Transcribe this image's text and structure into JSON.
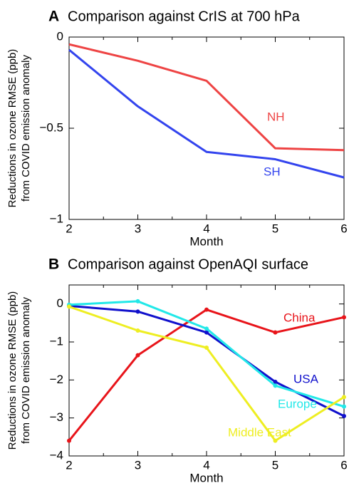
{
  "chart_data": [
    {
      "type": "line",
      "label": "A",
      "title": "Comparison against CrIS at 700 hPa",
      "xlabel": "Month",
      "ylabel": [
        "Reductions in ozone RMSE (ppb)",
        "from COVID emission anomaly"
      ],
      "x": [
        2,
        3,
        4,
        5,
        6
      ],
      "xlim": [
        2,
        6
      ],
      "xticks": [
        2,
        3,
        4,
        5,
        6
      ],
      "ylim": [
        -1,
        0
      ],
      "yticks": [
        {
          "value": -1,
          "label": "−1"
        },
        {
          "value": -0.5,
          "label": "−0.5"
        },
        0
      ],
      "markers": false,
      "series": [
        {
          "name": "NH",
          "color": "#ee4444",
          "values": [
            -0.04,
            -0.13,
            -0.24,
            -0.61,
            -0.62
          ]
        },
        {
          "name": "SH",
          "color": "#3344ee",
          "values": [
            -0.07,
            -0.38,
            -0.63,
            -0.67,
            -0.77
          ]
        }
      ]
    },
    {
      "type": "line",
      "label": "B",
      "title": "Comparison against OpenAQI surface",
      "xlabel": "Month",
      "ylabel": [
        "Reductions in ozone RMSE (ppb)",
        "from COVID emission anomaly"
      ],
      "x": [
        2,
        3,
        4,
        5,
        6
      ],
      "xlim": [
        2,
        6
      ],
      "xticks": [
        2,
        3,
        4,
        5,
        6
      ],
      "ylim": [
        -4,
        0.5
      ],
      "yticks": [
        {
          "value": -4,
          "label": "−4"
        },
        {
          "value": -3,
          "label": "−3"
        },
        {
          "value": -2,
          "label": "−2"
        },
        {
          "value": -1,
          "label": "−1"
        },
        0
      ],
      "markers": true,
      "series": [
        {
          "name": "China",
          "color": "#e8141a",
          "values": [
            -3.6,
            -1.35,
            -0.15,
            -0.75,
            -0.35
          ]
        },
        {
          "name": "USA",
          "color": "#1010cc",
          "values": [
            -0.05,
            -0.2,
            -0.75,
            -2.05,
            -2.95
          ]
        },
        {
          "name": "Europe",
          "color": "#22e8e8",
          "values": [
            -0.02,
            0.07,
            -0.65,
            -2.15,
            -2.7
          ]
        },
        {
          "name": "Middle East",
          "color": "#eeee22",
          "values": [
            -0.07,
            -0.7,
            -1.15,
            -3.6,
            -2.45
          ]
        }
      ]
    }
  ]
}
